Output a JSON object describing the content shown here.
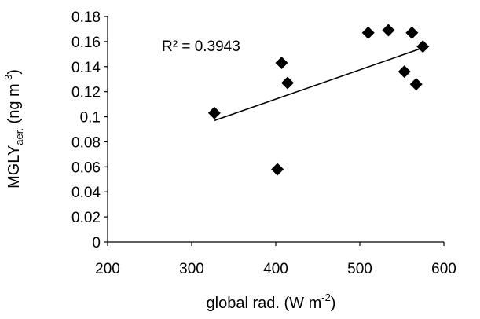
{
  "chart_data": {
    "type": "scatter",
    "xlabel": "global rad. (W m-2)",
    "xlabel_parts": {
      "main": "global rad. (W m",
      "sup": "-2",
      "close": ")"
    },
    "ylabel": "MGLY aer. (ng m-3)",
    "ylabel_parts": {
      "main": "MGLY",
      "sub": "aer.",
      "mid": " (ng m",
      "sup": "-3",
      "close": ")"
    },
    "xlim": [
      200,
      600
    ],
    "ylim": [
      0,
      0.18
    ],
    "xticks": [
      200,
      300,
      400,
      500,
      600
    ],
    "yticks": [
      0,
      0.02,
      0.04,
      0.06,
      0.08,
      0.1,
      0.12,
      0.14,
      0.16,
      0.18
    ],
    "xtick_labels": [
      "200",
      "300",
      "400",
      "500",
      "600"
    ],
    "ytick_labels": [
      "0",
      "0.02",
      "0.04",
      "0.06",
      "0.08",
      "0.1",
      "0.12",
      "0.14",
      "0.16",
      "0.18"
    ],
    "points": [
      {
        "x": 327,
        "y": 0.103
      },
      {
        "x": 402,
        "y": 0.058
      },
      {
        "x": 407,
        "y": 0.143
      },
      {
        "x": 414,
        "y": 0.127
      },
      {
        "x": 510,
        "y": 0.167
      },
      {
        "x": 534,
        "y": 0.169
      },
      {
        "x": 553,
        "y": 0.136
      },
      {
        "x": 562,
        "y": 0.167
      },
      {
        "x": 567,
        "y": 0.126
      },
      {
        "x": 575,
        "y": 0.156
      }
    ],
    "trendline": {
      "x": [
        327,
        575
      ],
      "y": [
        0.097,
        0.155
      ]
    },
    "annotation": "R² = 0.3943",
    "grid": false,
    "legend": "none",
    "marker": "diamond",
    "color": "#000000"
  }
}
